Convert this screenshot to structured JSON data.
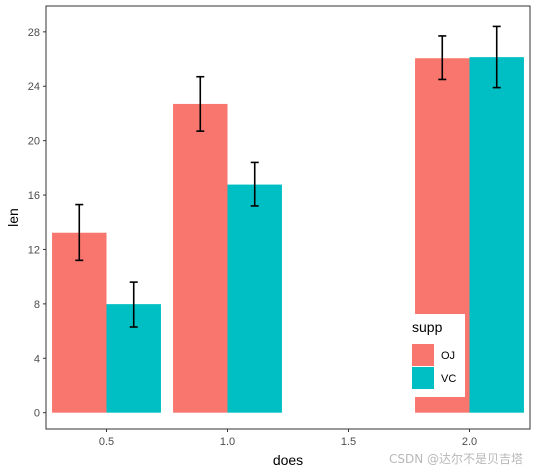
{
  "chart_data": {
    "type": "bar",
    "xlabel": "does",
    "ylabel": "len",
    "x_ticks": [
      "0.5",
      "1.0",
      "1.5",
      "2.0"
    ],
    "y_ticks": [
      "0",
      "4",
      "8",
      "12",
      "16",
      "20",
      "24",
      "28"
    ],
    "xlim": [
      0.25,
      2.25
    ],
    "ylim": [
      -1.2,
      29.9
    ],
    "legend": {
      "title": "supp",
      "placement": "bottom-right (inside plot)",
      "entries": [
        {
          "label": "OJ",
          "color": "#F8766D"
        },
        {
          "label": "VC",
          "color": "#00BFC4"
        }
      ]
    },
    "series": [
      {
        "name": "OJ",
        "color": "#F8766D",
        "x": [
          0.5,
          1.0,
          2.0
        ],
        "values": [
          13.23,
          22.7,
          26.06
        ],
        "error_low": [
          11.2,
          20.7,
          24.5
        ],
        "error_high": [
          15.3,
          24.7,
          27.7
        ]
      },
      {
        "name": "VC",
        "color": "#00BFC4",
        "x": [
          0.5,
          1.0,
          2.0
        ],
        "values": [
          7.98,
          16.77,
          26.14
        ],
        "error_low": [
          6.3,
          15.2,
          23.9
        ],
        "error_high": [
          9.6,
          18.4,
          28.4
        ]
      }
    ],
    "grid": false,
    "theme": "bordered panel, no gridlines"
  },
  "watermark": "CSDN @达尔不是贝吉塔"
}
